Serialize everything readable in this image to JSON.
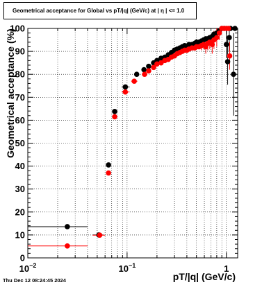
{
  "chart_data": {
    "type": "scatter",
    "title": "Geometrical acceptance for Global vs pT/|q| (GeV/c) at |  η  | <= 1.0",
    "xlabel": "pT/|q| (GeV/c)",
    "ylabel": "Geometrical acceptance (%)",
    "xscale": "log",
    "xlim": [
      0.01,
      1.3
    ],
    "ylim": [
      0,
      100
    ],
    "grid": true,
    "x_tick_labels": [
      {
        "value": 0.01,
        "base": "10",
        "exp": "−2"
      },
      {
        "value": 0.1,
        "base": "10",
        "exp": "−1"
      },
      {
        "value": 1,
        "base": "1",
        "exp": ""
      }
    ],
    "y_ticks": [
      0,
      10,
      20,
      30,
      40,
      50,
      60,
      70,
      80,
      90,
      100
    ],
    "series": [
      {
        "color": "#000000",
        "points": [
          {
            "x": 0.025,
            "y": 13.6,
            "xlo": 0.01,
            "xhi": 0.04
          },
          {
            "x": 0.052,
            "y": 10.0,
            "xlo": 0.045,
            "xhi": 0.058
          },
          {
            "x": 0.065,
            "y": 40.5
          },
          {
            "x": 0.075,
            "y": 63.8
          },
          {
            "x": 0.096,
            "y": 74.5,
            "xlo": 0.088,
            "xhi": 0.106
          },
          {
            "x": 0.125,
            "y": 80.0
          },
          {
            "x": 0.148,
            "y": 82.0
          },
          {
            "x": 0.165,
            "y": 83.5
          },
          {
            "x": 0.185,
            "y": 85.0
          },
          {
            "x": 0.2,
            "y": 86.0
          },
          {
            "x": 0.22,
            "y": 87.0
          },
          {
            "x": 0.24,
            "y": 87.5
          },
          {
            "x": 0.26,
            "y": 88.5
          },
          {
            "x": 0.28,
            "y": 89.5
          },
          {
            "x": 0.3,
            "y": 90.5
          },
          {
            "x": 0.32,
            "y": 91.0
          },
          {
            "x": 0.34,
            "y": 91.5
          },
          {
            "x": 0.36,
            "y": 92.0
          },
          {
            "x": 0.38,
            "y": 92.5
          },
          {
            "x": 0.4,
            "y": 92.0
          },
          {
            "x": 0.42,
            "y": 93.0
          },
          {
            "x": 0.45,
            "y": 93.0
          },
          {
            "x": 0.48,
            "y": 93.5
          },
          {
            "x": 0.5,
            "y": 94.0
          },
          {
            "x": 0.53,
            "y": 94.0
          },
          {
            "x": 0.56,
            "y": 94.5
          },
          {
            "x": 0.59,
            "y": 95.0
          },
          {
            "x": 0.62,
            "y": 95.5
          },
          {
            "x": 0.65,
            "y": 95.5
          },
          {
            "x": 0.68,
            "y": 96.0
          },
          {
            "x": 0.72,
            "y": 96.5
          },
          {
            "x": 0.75,
            "y": 97.5
          },
          {
            "x": 0.8,
            "y": 98.0
          },
          {
            "x": 0.85,
            "y": 99.0
          },
          {
            "x": 0.9,
            "y": 100.0
          },
          {
            "x": 0.95,
            "y": 100.0
          },
          {
            "x": 1.0,
            "y": 93.0,
            "yerr": 6
          },
          {
            "x": 1.03,
            "y": 85.5,
            "yerr": 10
          },
          {
            "x": 1.07,
            "y": 96.0,
            "yerr": 6
          },
          {
            "x": 1.1,
            "y": 100.0
          },
          {
            "x": 1.18,
            "y": 80.0,
            "yerr": 18
          },
          {
            "x": 1.22,
            "y": 100.0
          }
        ]
      },
      {
        "color": "#ff0000",
        "points": [
          {
            "x": 0.025,
            "y": 5.2,
            "xlo": 0.01,
            "xhi": 0.04
          },
          {
            "x": 0.053,
            "y": 9.9,
            "xlo": 0.045,
            "xhi": 0.06
          },
          {
            "x": 0.065,
            "y": 37.0
          },
          {
            "x": 0.075,
            "y": 61.5
          },
          {
            "x": 0.096,
            "y": 72.3,
            "xlo": 0.088,
            "xhi": 0.106
          },
          {
            "x": 0.118,
            "y": 77.0,
            "xlo": 0.11,
            "xhi": 0.127
          },
          {
            "x": 0.15,
            "y": 80.0
          },
          {
            "x": 0.165,
            "y": 81.5
          },
          {
            "x": 0.185,
            "y": 83.0
          },
          {
            "x": 0.2,
            "y": 84.5
          },
          {
            "x": 0.22,
            "y": 85.0
          },
          {
            "x": 0.24,
            "y": 86.0
          },
          {
            "x": 0.26,
            "y": 86.5
          },
          {
            "x": 0.28,
            "y": 87.5
          },
          {
            "x": 0.3,
            "y": 88.0
          },
          {
            "x": 0.32,
            "y": 89.0
          },
          {
            "x": 0.34,
            "y": 89.5
          },
          {
            "x": 0.36,
            "y": 90.0
          },
          {
            "x": 0.38,
            "y": 90.5
          },
          {
            "x": 0.4,
            "y": 90.5
          },
          {
            "x": 0.42,
            "y": 91.0
          },
          {
            "x": 0.45,
            "y": 91.5
          },
          {
            "x": 0.48,
            "y": 91.5
          },
          {
            "x": 0.5,
            "y": 92.0
          },
          {
            "x": 0.53,
            "y": 92.0
          },
          {
            "x": 0.56,
            "y": 92.5,
            "yerr": 2
          },
          {
            "x": 0.59,
            "y": 93.0,
            "yerr": 2
          },
          {
            "x": 0.62,
            "y": 92.0,
            "yerr": 3
          },
          {
            "x": 0.65,
            "y": 93.5,
            "yerr": 3
          },
          {
            "x": 0.68,
            "y": 94.0,
            "yerr": 3
          },
          {
            "x": 0.72,
            "y": 93.0,
            "yerr": 4
          },
          {
            "x": 0.75,
            "y": 95.0,
            "yerr": 4
          },
          {
            "x": 0.8,
            "y": 96.0,
            "yerr": 4
          },
          {
            "x": 0.85,
            "y": 98.0,
            "yerr": 3
          },
          {
            "x": 0.9,
            "y": 100.0
          },
          {
            "x": 0.95,
            "y": 100.0
          },
          {
            "x": 1.0,
            "y": 100.0
          },
          {
            "x": 1.05,
            "y": 100.0
          },
          {
            "x": 1.08,
            "y": 88.0,
            "yerr": 6
          }
        ]
      }
    ]
  },
  "timestamp": "Thu Dec 12 08:24:45 2024"
}
